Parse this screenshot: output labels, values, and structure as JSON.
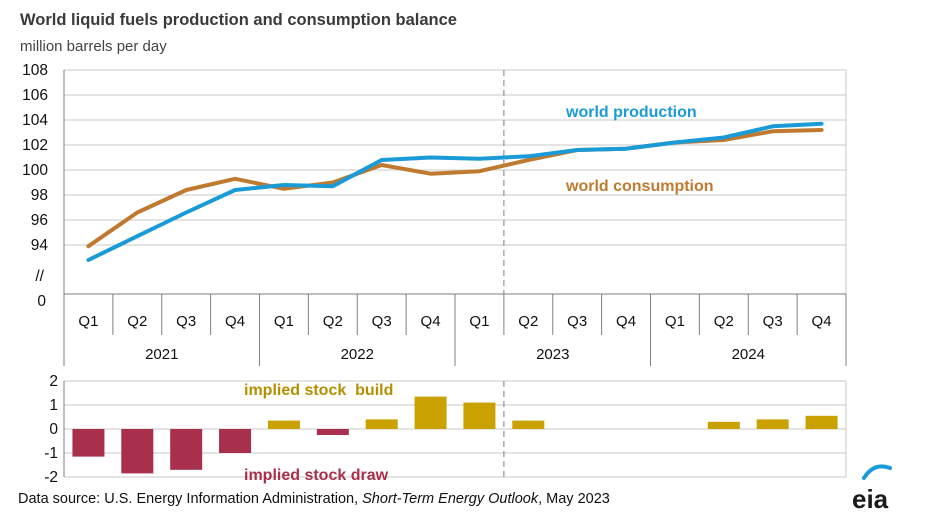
{
  "title": "World liquid fuels production and consumption balance",
  "subtitle": "million barrels per day",
  "source_prefix": "Data source: U.S. Energy Information Administration, ",
  "source_italic": "Short-Term Energy Outlook",
  "source_suffix": ", May 2023",
  "logo_text": "eia",
  "colors": {
    "production": "#1a9bd7",
    "consumption": "#c07a30",
    "build": "#c9a100",
    "draw": "#a8304d",
    "build_label": "#b68f00",
    "draw_label": "#a8304d",
    "grid": "#c8c8c8",
    "axis": "#7f7f7f",
    "divider": "#9a9a9a"
  },
  "chart_data": [
    {
      "type": "line",
      "categories": [
        "Q1",
        "Q2",
        "Q3",
        "Q4",
        "Q1",
        "Q2",
        "Q3",
        "Q4",
        "Q1",
        "Q2",
        "Q3",
        "Q4",
        "Q1",
        "Q2",
        "Q3",
        "Q4"
      ],
      "year_groups": [
        {
          "label": "2021",
          "span": 4
        },
        {
          "label": "2022",
          "span": 4
        },
        {
          "label": "2023",
          "span": 4
        },
        {
          "label": "2024",
          "span": 4
        }
      ],
      "y_ticks": [
        "108",
        "106",
        "104",
        "102",
        "100",
        "98",
        "96",
        "94"
      ],
      "y_break_label": "//",
      "y_zero_label": "0",
      "ylim": [
        94,
        108
      ],
      "forecast_start_after_index": 8,
      "series": [
        {
          "name": "world production",
          "key": "production",
          "values": [
            92.8,
            94.7,
            96.6,
            98.4,
            98.8,
            98.7,
            100.8,
            101.0,
            100.9,
            101.1,
            101.6,
            101.7,
            102.2,
            102.6,
            103.5,
            103.7
          ]
        },
        {
          "name": "world consumption",
          "key": "consumption",
          "values": [
            93.9,
            96.6,
            98.4,
            99.3,
            98.5,
            99.0,
            100.4,
            99.7,
            99.9,
            100.8,
            101.6,
            101.7,
            102.2,
            102.4,
            103.1,
            103.2
          ]
        }
      ]
    },
    {
      "type": "bar",
      "categories": [
        "Q1",
        "Q2",
        "Q3",
        "Q4",
        "Q1",
        "Q2",
        "Q3",
        "Q4",
        "Q1",
        "Q2",
        "Q3",
        "Q4",
        "Q1",
        "Q2",
        "Q3",
        "Q4"
      ],
      "y_ticks": [
        "2",
        "1",
        "0",
        "-1",
        "-2"
      ],
      "ylim": [
        -2,
        2
      ],
      "values": [
        -1.15,
        -1.85,
        -1.7,
        -1.0,
        0.35,
        -0.25,
        0.4,
        1.35,
        1.1,
        0.35,
        0,
        0,
        0,
        0.3,
        0.4,
        0.55
      ],
      "annotations": {
        "build": "implied stock  build",
        "draw": "implied stock draw"
      }
    }
  ]
}
